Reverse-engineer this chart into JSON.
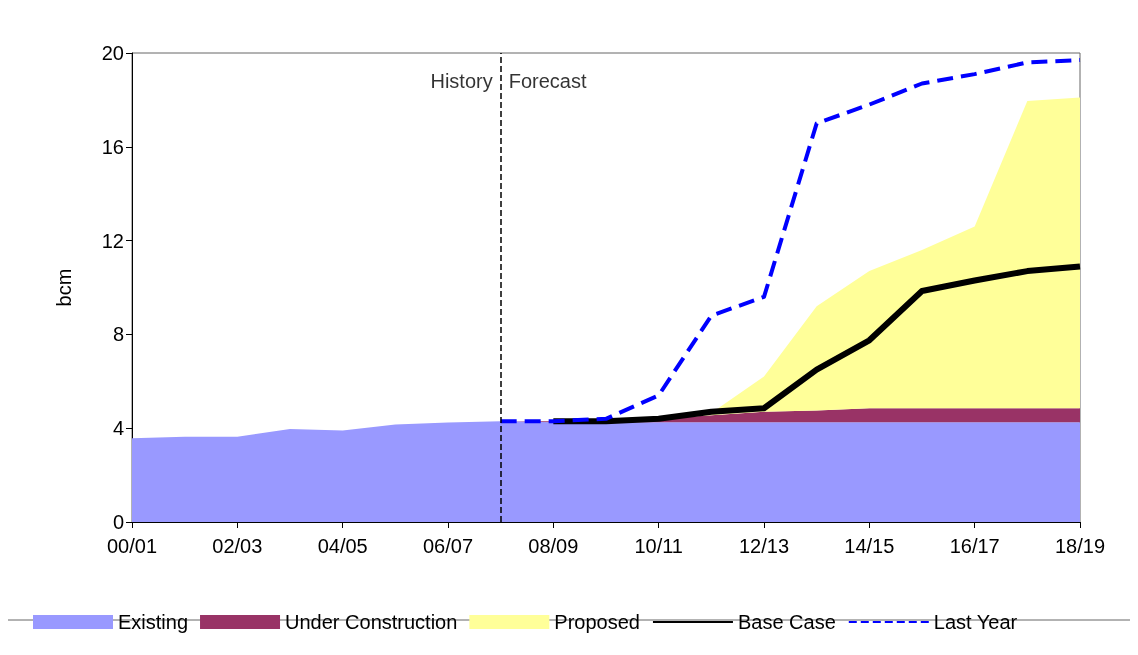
{
  "chart_data": {
    "type": "area",
    "ylabel": "bcm",
    "stacked": true,
    "categories": [
      "00/01",
      null,
      "02/03",
      null,
      "04/05",
      null,
      "06/07",
      null,
      "08/09",
      null,
      "10/11",
      null,
      "12/13",
      null,
      "14/15",
      null,
      "16/17",
      null,
      "18/19"
    ],
    "ylim": [
      0,
      20
    ],
    "yticks": [
      0,
      4,
      8,
      12,
      16,
      20
    ],
    "series": [
      {
        "name": "Existing",
        "color": "#9999ff",
        "values": [
          3.57,
          3.64,
          3.64,
          3.97,
          3.9,
          4.16,
          4.24,
          4.3,
          4.25,
          4.25,
          4.25,
          4.25,
          4.25,
          4.25,
          4.25,
          4.25,
          4.25,
          4.25,
          4.25
        ]
      },
      {
        "name": "Under Construction",
        "color": "#993366",
        "values": [
          null,
          null,
          null,
          null,
          null,
          null,
          null,
          0,
          0.05,
          0.1,
          0.15,
          0.3,
          0.45,
          0.5,
          0.6,
          0.6,
          0.6,
          0.6,
          0.6
        ]
      },
      {
        "name": "Proposed",
        "color": "#ffff99",
        "values": [
          null,
          null,
          null,
          null,
          null,
          null,
          null,
          null,
          null,
          null,
          0,
          0.1,
          1.5,
          4.45,
          5.85,
          6.75,
          7.75,
          13.1,
          13.25
        ]
      },
      {
        "name": "Base Case",
        "type": "line",
        "color": "#000000",
        "line_style": "solid",
        "values": [
          null,
          null,
          null,
          null,
          null,
          null,
          null,
          null,
          4.3,
          4.3,
          4.4,
          4.7,
          4.85,
          6.5,
          7.75,
          9.85,
          10.3,
          10.7,
          10.9
        ]
      },
      {
        "name": "Last Year",
        "type": "line",
        "color": "#0000ff",
        "line_style": "dashed",
        "values": [
          null,
          null,
          null,
          null,
          null,
          null,
          null,
          4.3,
          4.3,
          4.4,
          5.4,
          8.8,
          9.6,
          17.0,
          17.8,
          18.7,
          19.1,
          19.6,
          19.7
        ]
      }
    ],
    "annotations": [
      "History",
      "Forecast"
    ],
    "legend": "bottom"
  }
}
